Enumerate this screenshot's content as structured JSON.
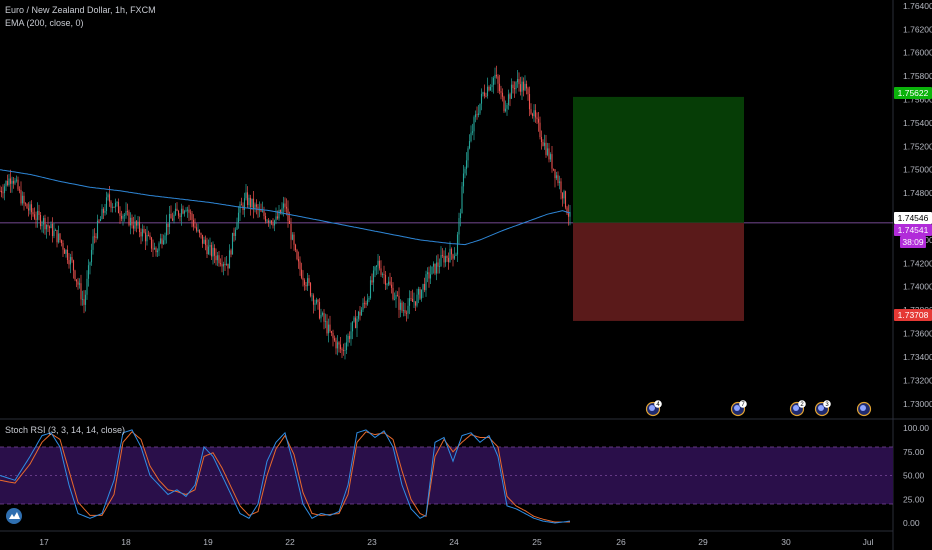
{
  "header": {
    "symbol_title": "Euro / New Zealand Dollar, 1h, FXCM",
    "ema_label": "EMA (200, close, 0)",
    "stoch_label": "Stoch RSI (3, 3, 14, 14, close)"
  },
  "price_tags": {
    "target": "1.75622",
    "current": "1.74546",
    "last": "1.74541",
    "countdown": "38:09",
    "stop": "1.73708"
  },
  "colors": {
    "background": "#000000",
    "up": "#26a69a",
    "down": "#ef5350",
    "ema": "#2e86d6",
    "stoch_k": "#2f8de4",
    "stoch_d": "#e8692c",
    "profit_zone": "#063d06",
    "loss_zone": "#5a1a1a",
    "band": "#2a0f4a"
  },
  "event_badges": [
    "4",
    "7",
    "2",
    "3",
    ""
  ],
  "chart_data": [
    {
      "type": "candlestick",
      "x_ticks": [
        "17",
        "18",
        "19",
        "22",
        "23",
        "24",
        "25",
        "26",
        "29",
        "30",
        "Jul"
      ],
      "y_ticks": [
        "1.76400",
        "1.76200",
        "1.76000",
        "1.75800",
        "1.75600",
        "1.75400",
        "1.75200",
        "1.75000",
        "1.74800",
        "1.74600",
        "1.74400",
        "1.74200",
        "1.74000",
        "1.73800",
        "1.73600",
        "1.73400",
        "1.73200",
        "1.73000"
      ],
      "ylim": [
        1.7287,
        1.7645
      ],
      "series": [
        {
          "name": "EMA (200, close, 0)"
        }
      ],
      "close_path": [
        [
          0,
          1.7482
        ],
        [
          8,
          1.7495
        ],
        [
          16,
          1.747
        ],
        [
          24,
          1.746
        ],
        [
          30,
          1.7455
        ],
        [
          40,
          1.744
        ],
        [
          48,
          1.742
        ],
        [
          56,
          1.7385
        ],
        [
          62,
          1.744
        ],
        [
          72,
          1.7475
        ],
        [
          84,
          1.746
        ],
        [
          96,
          1.7445
        ],
        [
          104,
          1.743
        ],
        [
          112,
          1.7455
        ],
        [
          124,
          1.747
        ],
        [
          132,
          1.7445
        ],
        [
          140,
          1.743
        ],
        [
          152,
          1.742
        ],
        [
          158,
          1.746
        ],
        [
          164,
          1.7475
        ],
        [
          174,
          1.7462
        ],
        [
          184,
          1.7456
        ],
        [
          190,
          1.747
        ],
        [
          198,
          1.742
        ],
        [
          206,
          1.74
        ],
        [
          214,
          1.7375
        ],
        [
          222,
          1.7355
        ],
        [
          228,
          1.7345
        ],
        [
          236,
          1.7368
        ],
        [
          244,
          1.7388
        ],
        [
          252,
          1.742
        ],
        [
          260,
          1.74
        ],
        [
          268,
          1.738
        ],
        [
          278,
          1.739
        ],
        [
          286,
          1.741
        ],
        [
          296,
          1.7425
        ],
        [
          304,
          1.743
        ],
        [
          310,
          1.7505
        ],
        [
          316,
          1.754
        ],
        [
          322,
          1.7565
        ],
        [
          330,
          1.758
        ],
        [
          336,
          1.7555
        ],
        [
          344,
          1.7575
        ],
        [
          350,
          1.757
        ],
        [
          356,
          1.7545
        ],
        [
          362,
          1.7525
        ],
        [
          368,
          1.7505
        ],
        [
          374,
          1.7485
        ],
        [
          380,
          1.7458
        ]
      ],
      "ema_path": [
        [
          0,
          1.75
        ],
        [
          20,
          1.7496
        ],
        [
          40,
          1.749
        ],
        [
          60,
          1.7485
        ],
        [
          80,
          1.7482
        ],
        [
          100,
          1.7478
        ],
        [
          120,
          1.7475
        ],
        [
          140,
          1.7472
        ],
        [
          160,
          1.7468
        ],
        [
          180,
          1.7465
        ],
        [
          200,
          1.746
        ],
        [
          220,
          1.7455
        ],
        [
          240,
          1.745
        ],
        [
          260,
          1.7445
        ],
        [
          280,
          1.744
        ],
        [
          300,
          1.7437
        ],
        [
          310,
          1.7436
        ],
        [
          320,
          1.744
        ],
        [
          335,
          1.7448
        ],
        [
          350,
          1.7455
        ],
        [
          365,
          1.7462
        ],
        [
          375,
          1.7465
        ],
        [
          380,
          1.7463
        ]
      ],
      "annotations": {
        "position_entry": 1.74546,
        "take_profit": 1.75622,
        "stop_loss": 1.73708
      }
    },
    {
      "type": "line",
      "title": "Stoch RSI (3, 3, 14, 14, close)",
      "y_ticks": [
        "100.00",
        "75.00",
        "50.00",
        "25.00",
        "0.00"
      ],
      "ylim": [
        0,
        100
      ],
      "band": [
        20,
        80
      ],
      "k_path": [
        [
          0,
          50
        ],
        [
          10,
          45
        ],
        [
          20,
          70
        ],
        [
          28,
          92
        ],
        [
          34,
          95
        ],
        [
          40,
          80
        ],
        [
          46,
          40
        ],
        [
          52,
          10
        ],
        [
          60,
          5
        ],
        [
          68,
          10
        ],
        [
          76,
          45
        ],
        [
          82,
          95
        ],
        [
          88,
          98
        ],
        [
          94,
          80
        ],
        [
          100,
          50
        ],
        [
          106,
          40
        ],
        [
          112,
          30
        ],
        [
          118,
          35
        ],
        [
          124,
          28
        ],
        [
          130,
          40
        ],
        [
          136,
          80
        ],
        [
          142,
          70
        ],
        [
          148,
          50
        ],
        [
          154,
          30
        ],
        [
          160,
          10
        ],
        [
          166,
          5
        ],
        [
          172,
          20
        ],
        [
          178,
          65
        ],
        [
          184,
          85
        ],
        [
          190,
          95
        ],
        [
          196,
          60
        ],
        [
          202,
          20
        ],
        [
          208,
          5
        ],
        [
          214,
          10
        ],
        [
          220,
          8
        ],
        [
          226,
          12
        ],
        [
          232,
          40
        ],
        [
          238,
          95
        ],
        [
          244,
          98
        ],
        [
          250,
          90
        ],
        [
          256,
          97
        ],
        [
          262,
          80
        ],
        [
          268,
          40
        ],
        [
          274,
          15
        ],
        [
          280,
          5
        ],
        [
          284,
          8
        ],
        [
          290,
          85
        ],
        [
          296,
          90
        ],
        [
          302,
          65
        ],
        [
          308,
          92
        ],
        [
          314,
          95
        ],
        [
          320,
          85
        ],
        [
          326,
          92
        ],
        [
          332,
          70
        ],
        [
          338,
          18
        ],
        [
          344,
          15
        ],
        [
          350,
          10
        ],
        [
          356,
          5
        ],
        [
          362,
          2
        ],
        [
          370,
          0
        ],
        [
          380,
          2
        ]
      ],
      "d_path": [
        [
          0,
          45
        ],
        [
          10,
          42
        ],
        [
          20,
          62
        ],
        [
          28,
          85
        ],
        [
          34,
          94
        ],
        [
          40,
          88
        ],
        [
          46,
          55
        ],
        [
          52,
          22
        ],
        [
          60,
          8
        ],
        [
          68,
          8
        ],
        [
          76,
          30
        ],
        [
          82,
          85
        ],
        [
          88,
          96
        ],
        [
          94,
          88
        ],
        [
          100,
          60
        ],
        [
          106,
          45
        ],
        [
          112,
          35
        ],
        [
          118,
          33
        ],
        [
          124,
          30
        ],
        [
          130,
          35
        ],
        [
          136,
          70
        ],
        [
          142,
          74
        ],
        [
          148,
          58
        ],
        [
          154,
          38
        ],
        [
          160,
          18
        ],
        [
          166,
          8
        ],
        [
          172,
          12
        ],
        [
          178,
          50
        ],
        [
          184,
          78
        ],
        [
          190,
          92
        ],
        [
          196,
          72
        ],
        [
          202,
          32
        ],
        [
          208,
          10
        ],
        [
          214,
          8
        ],
        [
          220,
          9
        ],
        [
          226,
          10
        ],
        [
          232,
          30
        ],
        [
          238,
          85
        ],
        [
          244,
          96
        ],
        [
          250,
          93
        ],
        [
          256,
          95
        ],
        [
          262,
          88
        ],
        [
          268,
          55
        ],
        [
          274,
          25
        ],
        [
          280,
          10
        ],
        [
          284,
          7
        ],
        [
          290,
          70
        ],
        [
          296,
          88
        ],
        [
          302,
          75
        ],
        [
          308,
          85
        ],
        [
          314,
          93
        ],
        [
          320,
          90
        ],
        [
          326,
          90
        ],
        [
          332,
          80
        ],
        [
          338,
          28
        ],
        [
          344,
          18
        ],
        [
          350,
          13
        ],
        [
          356,
          7
        ],
        [
          362,
          4
        ],
        [
          370,
          1
        ],
        [
          380,
          1
        ]
      ]
    }
  ]
}
